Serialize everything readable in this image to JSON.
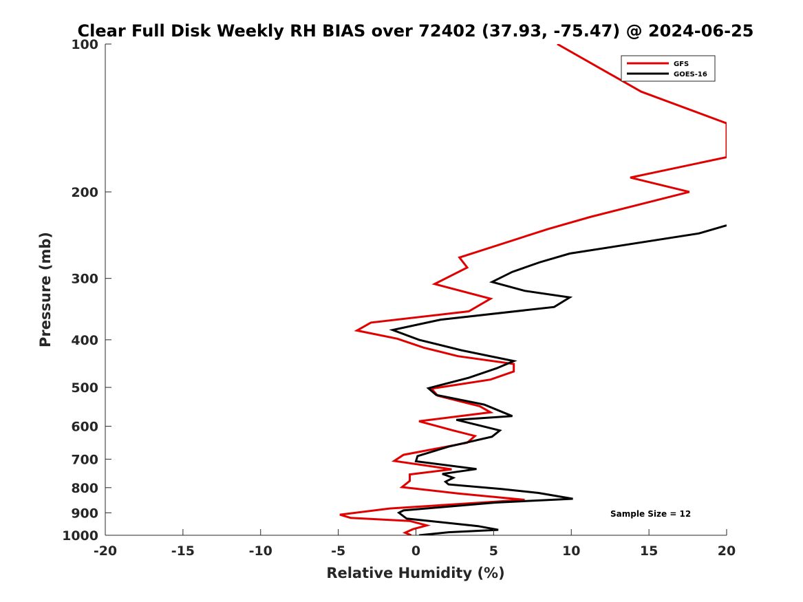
{
  "chart_data": {
    "type": "line",
    "title": "Clear Full Disk Weekly RH BIAS over 72402 (37.93, -75.47) @ 2024-06-25",
    "xlabel": "Relative Humidity (%)",
    "ylabel": "Pressure (mb)",
    "xlim": [
      -20,
      20
    ],
    "ylim": [
      100,
      1000
    ],
    "yscale": "log",
    "y_reversed": true,
    "grid": false,
    "legend_position": "top-right",
    "x_ticks": [
      -20,
      -15,
      -10,
      -5,
      0,
      5,
      10,
      15,
      20
    ],
    "x_tick_labels": [
      "-20",
      "-15",
      "-10",
      "-5",
      "0",
      "5",
      "10",
      "15",
      "20"
    ],
    "y_ticks": [
      100,
      200,
      300,
      400,
      500,
      600,
      700,
      800,
      900,
      1000
    ],
    "y_tick_labels": [
      "100",
      "200",
      "300",
      "400",
      "500",
      "600",
      "700",
      "800",
      "900",
      "1000"
    ],
    "annotation": "Sample Size = 12",
    "series": [
      {
        "name": "GFS",
        "color": "#e00000",
        "points": [
          [
            9.1,
            100
          ],
          [
            14.5,
            125
          ],
          [
            20,
            145
          ],
          [
            20,
            170
          ],
          [
            13.8,
            187
          ],
          [
            17.6,
            200
          ],
          [
            11.2,
            225
          ],
          [
            8.5,
            238
          ],
          [
            2.8,
            272
          ],
          [
            3.3,
            285
          ],
          [
            1.2,
            308
          ],
          [
            4.8,
            330
          ],
          [
            3.4,
            350
          ],
          [
            -2.9,
            369
          ],
          [
            -3.8,
            383
          ],
          [
            -1.2,
            398
          ],
          [
            0.5,
            415
          ],
          [
            2.7,
            432
          ],
          [
            6.3,
            448
          ],
          [
            6.3,
            464
          ],
          [
            4.8,
            482
          ],
          [
            1.0,
            503
          ],
          [
            1.4,
            520
          ],
          [
            4.1,
            546
          ],
          [
            4.8,
            562
          ],
          [
            0.2,
            586
          ],
          [
            2.4,
            612
          ],
          [
            3.8,
            628
          ],
          [
            3.3,
            648
          ],
          [
            -0.8,
            686
          ],
          [
            -1.4,
            706
          ],
          [
            2.3,
            734
          ],
          [
            -0.4,
            752
          ],
          [
            -0.4,
            775
          ],
          [
            -0.9,
            798
          ],
          [
            2.7,
            822
          ],
          [
            7.0,
            847
          ],
          [
            -1.7,
            882
          ],
          [
            -4.9,
            908
          ],
          [
            -4.2,
            922
          ],
          [
            -0.4,
            935
          ],
          [
            0.7,
            955
          ],
          [
            -0.2,
            972
          ],
          [
            -0.7,
            988
          ],
          [
            -0.3,
            1000
          ]
        ]
      },
      {
        "name": "GOES-16",
        "color": "#000000",
        "points": [
          [
            20,
            234
          ],
          [
            18.2,
            243
          ],
          [
            9.9,
            267
          ],
          [
            8.0,
            278
          ],
          [
            6.2,
            291
          ],
          [
            4.9,
            305
          ],
          [
            7.0,
            318
          ],
          [
            9.9,
            328
          ],
          [
            8.9,
            343
          ],
          [
            1.6,
            364
          ],
          [
            -1.5,
            382
          ],
          [
            0.2,
            400
          ],
          [
            2.9,
            420
          ],
          [
            6.3,
            442
          ],
          [
            5.2,
            457
          ],
          [
            3.4,
            478
          ],
          [
            0.8,
            502
          ],
          [
            1.3,
            518
          ],
          [
            4.4,
            542
          ],
          [
            6.2,
            572
          ],
          [
            2.6,
            582
          ],
          [
            4.3,
            600
          ],
          [
            5.4,
            612
          ],
          [
            4.9,
            630
          ],
          [
            2.1,
            660
          ],
          [
            0.1,
            690
          ],
          [
            0.0,
            707
          ],
          [
            3.9,
            733
          ],
          [
            1.7,
            750
          ],
          [
            2.4,
            764
          ],
          [
            1.9,
            778
          ],
          [
            2.1,
            788
          ],
          [
            5.5,
            805
          ],
          [
            7.9,
            820
          ],
          [
            10.1,
            843
          ],
          [
            5.1,
            858
          ],
          [
            -0.8,
            890
          ],
          [
            -1.1,
            900
          ],
          [
            -0.6,
            925
          ],
          [
            4.0,
            958
          ],
          [
            5.3,
            975
          ],
          [
            2.1,
            986
          ],
          [
            0.2,
            1000
          ]
        ]
      }
    ]
  }
}
